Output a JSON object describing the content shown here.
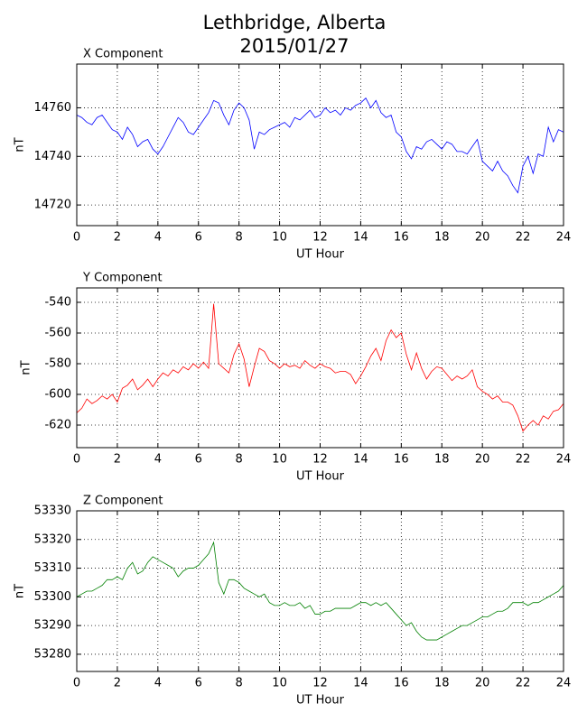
{
  "title": "Lethbridge, Alberta",
  "subtitle": "2015/01/27",
  "chart_data": [
    {
      "type": "line",
      "title": "X Component",
      "xlabel": "UT Hour",
      "ylabel": "nT",
      "color": "#0000ff",
      "grid": true,
      "xlim": [
        0,
        24
      ],
      "xticks": [
        0,
        2,
        4,
        6,
        8,
        10,
        12,
        14,
        16,
        18,
        20,
        22,
        24
      ],
      "ylim": [
        14711.5,
        14778
      ],
      "yticks": [
        14720,
        14740,
        14760
      ],
      "x": [
        0,
        0.25,
        0.5,
        0.75,
        1,
        1.25,
        1.5,
        1.75,
        2,
        2.25,
        2.5,
        2.75,
        3,
        3.25,
        3.5,
        3.75,
        4,
        4.25,
        4.5,
        4.75,
        5,
        5.25,
        5.5,
        5.75,
        6,
        6.25,
        6.5,
        6.75,
        7,
        7.25,
        7.5,
        7.75,
        8,
        8.25,
        8.5,
        8.75,
        9,
        9.25,
        9.5,
        9.75,
        10,
        10.25,
        10.5,
        10.75,
        11,
        11.25,
        11.5,
        11.75,
        12,
        12.25,
        12.5,
        12.75,
        13,
        13.25,
        13.5,
        13.75,
        14,
        14.25,
        14.5,
        14.75,
        15,
        15.25,
        15.5,
        15.75,
        16,
        16.25,
        16.5,
        16.75,
        17,
        17.25,
        17.5,
        17.75,
        18,
        18.25,
        18.5,
        18.75,
        19,
        19.25,
        19.5,
        19.75,
        20,
        20.25,
        20.5,
        20.75,
        21,
        21.25,
        21.5,
        21.75,
        22,
        22.25,
        22.5,
        22.75,
        23,
        23.25,
        23.5,
        23.75,
        24
      ],
      "values": [
        14757,
        14756,
        14754,
        14753,
        14756,
        14757,
        14754,
        14751,
        14750,
        14747,
        14752,
        14749,
        14744,
        14746,
        14747,
        14743,
        14741,
        14744,
        14748,
        14752,
        14756,
        14754,
        14750,
        14749,
        14752,
        14755,
        14758,
        14763,
        14762,
        14757,
        14753,
        14759,
        14762,
        14760,
        14755,
        14743,
        14750,
        14749,
        14751,
        14752,
        14753,
        14754,
        14752,
        14756,
        14755,
        14757,
        14759,
        14756,
        14757,
        14760,
        14758,
        14759,
        14757,
        14760,
        14759,
        14761,
        14762,
        14764,
        14760,
        14763,
        14758,
        14756,
        14757,
        14750,
        14748,
        14742,
        14739,
        14744,
        14743,
        14746,
        14747,
        14745,
        14743,
        14746,
        14745,
        14742,
        14742,
        14741,
        14744,
        14747,
        14738,
        14736,
        14734,
        14738,
        14734,
        14732,
        14728,
        14725,
        14736,
        14740,
        14733,
        14741,
        14740,
        14752,
        14746,
        14751,
        14750
      ]
    },
    {
      "type": "line",
      "title": "Y Component",
      "xlabel": "UT Hour",
      "ylabel": "nT",
      "color": "#ff0000",
      "grid": true,
      "xlim": [
        0,
        24
      ],
      "xticks": [
        0,
        2,
        4,
        6,
        8,
        10,
        12,
        14,
        16,
        18,
        20,
        22,
        24
      ],
      "ylim": [
        -634.7,
        -530.6
      ],
      "yticks": [
        -620,
        -600,
        -580,
        -560,
        -540
      ],
      "x": [
        0,
        0.25,
        0.5,
        0.75,
        1,
        1.25,
        1.5,
        1.75,
        2,
        2.25,
        2.5,
        2.75,
        3,
        3.25,
        3.5,
        3.75,
        4,
        4.25,
        4.5,
        4.75,
        5,
        5.25,
        5.5,
        5.75,
        6,
        6.25,
        6.5,
        6.75,
        7,
        7.25,
        7.5,
        7.75,
        8,
        8.25,
        8.5,
        8.75,
        9,
        9.25,
        9.5,
        9.75,
        10,
        10.25,
        10.5,
        10.75,
        11,
        11.25,
        11.5,
        11.75,
        12,
        12.25,
        12.5,
        12.75,
        13,
        13.25,
        13.5,
        13.75,
        14,
        14.25,
        14.5,
        14.75,
        15,
        15.25,
        15.5,
        15.75,
        16,
        16.25,
        16.5,
        16.75,
        17,
        17.25,
        17.5,
        17.75,
        18,
        18.25,
        18.5,
        18.75,
        19,
        19.25,
        19.5,
        19.75,
        20,
        20.25,
        20.5,
        20.75,
        21,
        21.25,
        21.5,
        21.75,
        22,
        22.25,
        22.5,
        22.75,
        23,
        23.25,
        23.5,
        23.75,
        24
      ],
      "values": [
        -612,
        -609,
        -603,
        -606,
        -604,
        -601,
        -603,
        -600,
        -605,
        -596,
        -594,
        -590,
        -597,
        -594,
        -590,
        -595,
        -590,
        -586,
        -588,
        -584,
        -586,
        -582,
        -584,
        -580,
        -583,
        -579,
        -583,
        -541,
        -580,
        -583,
        -586,
        -574,
        -567,
        -577,
        -595,
        -582,
        -570,
        -572,
        -578,
        -580,
        -583,
        -580,
        -582,
        -581,
        -583,
        -578,
        -581,
        -583,
        -580,
        -582,
        -583,
        -586,
        -585,
        -585,
        -587,
        -593,
        -588,
        -582,
        -575,
        -570,
        -578,
        -565,
        -558,
        -563,
        -560,
        -574,
        -584,
        -573,
        -583,
        -590,
        -585,
        -582,
        -583,
        -587,
        -591,
        -588,
        -590,
        -588,
        -584,
        -595,
        -598,
        -600,
        -603,
        -601,
        -605,
        -605,
        -607,
        -614,
        -624,
        -620,
        -617,
        -620,
        -614,
        -616,
        -611,
        -610,
        -606
      ]
    },
    {
      "type": "line",
      "title": "Z Component",
      "xlabel": "UT Hour",
      "ylabel": "nT",
      "color": "#008000",
      "grid": true,
      "xlim": [
        0,
        24
      ],
      "xticks": [
        0,
        2,
        4,
        6,
        8,
        10,
        12,
        14,
        16,
        18,
        20,
        22,
        24
      ],
      "ylim": [
        53274,
        53330
      ],
      "yticks": [
        53280,
        53290,
        53300,
        53310,
        53320,
        53330
      ],
      "x": [
        0,
        0.25,
        0.5,
        0.75,
        1,
        1.25,
        1.5,
        1.75,
        2,
        2.25,
        2.5,
        2.75,
        3,
        3.25,
        3.5,
        3.75,
        4,
        4.25,
        4.5,
        4.75,
        5,
        5.25,
        5.5,
        5.75,
        6,
        6.25,
        6.5,
        6.75,
        7,
        7.25,
        7.5,
        7.75,
        8,
        8.25,
        8.5,
        8.75,
        9,
        9.25,
        9.5,
        9.75,
        10,
        10.25,
        10.5,
        10.75,
        11,
        11.25,
        11.5,
        11.75,
        12,
        12.25,
        12.5,
        12.75,
        13,
        13.25,
        13.5,
        13.75,
        14,
        14.25,
        14.5,
        14.75,
        15,
        15.25,
        15.5,
        15.75,
        16,
        16.25,
        16.5,
        16.75,
        17,
        17.25,
        17.5,
        17.75,
        18,
        18.25,
        18.5,
        18.75,
        19,
        19.25,
        19.5,
        19.75,
        20,
        20.25,
        20.5,
        20.75,
        21,
        21.25,
        21.5,
        21.75,
        22,
        22.25,
        22.5,
        22.75,
        23,
        23.25,
        23.5,
        23.75,
        24
      ],
      "values": [
        53300,
        53301,
        53302,
        53302,
        53303,
        53304,
        53306,
        53306,
        53307,
        53306,
        53310,
        53312,
        53308,
        53309,
        53312,
        53314,
        53313,
        53312,
        53311,
        53310,
        53307,
        53309,
        53310,
        53310,
        53311,
        53313,
        53315,
        53319,
        53305,
        53301,
        53306,
        53306,
        53305,
        53303,
        53302,
        53301,
        53300,
        53301,
        53298,
        53297,
        53297,
        53298,
        53297,
        53297,
        53298,
        53296,
        53297,
        53294,
        53294,
        53295,
        53295,
        53296,
        53296,
        53296,
        53296,
        53297,
        53298,
        53298,
        53297,
        53298,
        53297,
        53298,
        53296,
        53294,
        53292,
        53290,
        53291,
        53288,
        53286,
        53285,
        53285,
        53285,
        53286,
        53287,
        53288,
        53289,
        53290,
        53290,
        53291,
        53292,
        53293,
        53293,
        53294,
        53295,
        53295,
        53296,
        53298,
        53298,
        53298,
        53297,
        53298,
        53298,
        53299,
        53300,
        53301,
        53302,
        53304
      ]
    }
  ]
}
